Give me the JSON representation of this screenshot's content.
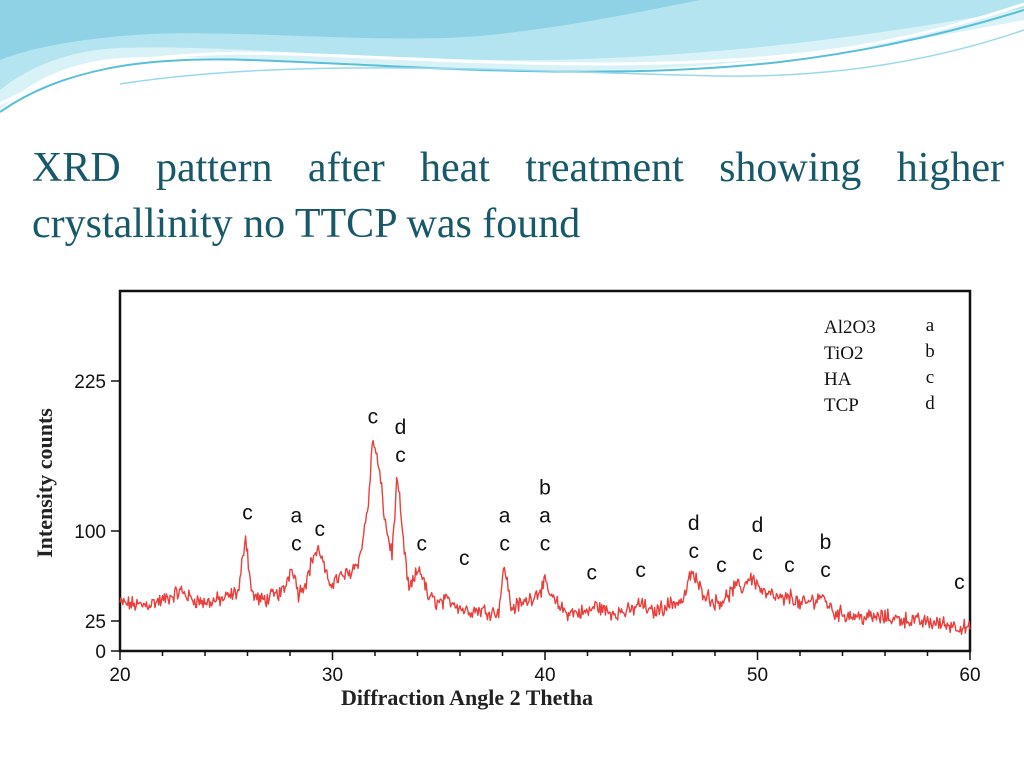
{
  "slide": {
    "title": "XRD pattern after heat treatment showing higher crystallinity no TTCP was found"
  },
  "colors": {
    "title": "#17586a",
    "series": "#e8403c",
    "header_wave_light": "#cfeff6",
    "header_wave_mid": "#a7dfee",
    "header_wave_dark": "#59bfd9"
  },
  "chart_data": {
    "type": "line",
    "xlabel": "Diffraction Angle 2 Thetha",
    "ylabel": "Intensity counts",
    "xlim": [
      20,
      60
    ],
    "ylim": [
      0,
      300
    ],
    "grid": false,
    "x_ticks": [
      20,
      30,
      40,
      50,
      60
    ],
    "y_ticks": [
      0,
      25,
      100,
      225
    ],
    "legend_position": "top-right",
    "legend": [
      {
        "phase": "Al2O3",
        "letter": "a"
      },
      {
        "phase": "TiO2",
        "letter": "b"
      },
      {
        "phase": "HA",
        "letter": "c"
      },
      {
        "phase": "TCP",
        "letter": "d"
      }
    ],
    "series": [
      {
        "x": [
          20,
          21,
          22,
          22.9,
          23.3,
          24,
          25,
          25.6,
          25.9,
          26.2,
          26.6,
          27,
          27.7,
          28.1,
          28.4,
          28.8,
          29.1,
          29.4,
          29.8,
          30.2,
          30.8,
          31.3,
          31.7,
          31.9,
          32.2,
          32.5,
          32.8,
          33.05,
          33.3,
          33.6,
          34.1,
          34.5,
          35,
          35.6,
          36.2,
          37,
          37.8,
          38.1,
          38.4,
          39,
          39.6,
          40,
          40.4,
          41,
          42,
          42.4,
          43,
          44,
          44.5,
          45,
          46,
          46.5,
          46.9,
          47.3,
          48,
          48.5,
          49,
          49.3,
          49.6,
          49.9,
          50.3,
          50.7,
          51.2,
          51.6,
          52,
          52.6,
          53,
          53.2,
          53.6,
          54.3,
          55,
          56,
          57,
          58,
          59,
          59.6,
          60
        ],
        "y": [
          40,
          38,
          42,
          50,
          44,
          40,
          44,
          50,
          98,
          48,
          42,
          44,
          50,
          72,
          48,
          60,
          80,
          84,
          56,
          60,
          65,
          78,
          125,
          178,
          150,
          105,
          80,
          146,
          95,
          50,
          70,
          45,
          40,
          42,
          34,
          34,
          32,
          72,
          36,
          40,
          48,
          56,
          42,
          32,
          32,
          38,
          32,
          33,
          40,
          32,
          40,
          42,
          66,
          52,
          40,
          44,
          54,
          52,
          62,
          58,
          48,
          46,
          42,
          46,
          38,
          42,
          46,
          42,
          32,
          30,
          28,
          28,
          26,
          24,
          22,
          20,
          18
        ]
      }
    ],
    "peak_annotations": [
      {
        "x": 26.0,
        "y": 98,
        "labels": [
          "c"
        ]
      },
      {
        "x": 28.3,
        "y": 72,
        "labels": [
          "a",
          "c"
        ]
      },
      {
        "x": 29.4,
        "y": 84,
        "labels": [
          "c"
        ]
      },
      {
        "x": 31.9,
        "y": 178,
        "labels": [
          "c"
        ]
      },
      {
        "x": 33.2,
        "y": 146,
        "labels": [
          "d",
          "c"
        ]
      },
      {
        "x": 34.2,
        "y": 72,
        "labels": [
          "c"
        ]
      },
      {
        "x": 36.2,
        "y": 60,
        "labels": [
          "c"
        ]
      },
      {
        "x": 38.1,
        "y": 72,
        "labels": [
          "a",
          "c"
        ]
      },
      {
        "x": 40.0,
        "y": 72,
        "labels": [
          "b",
          "a",
          "c"
        ]
      },
      {
        "x": 42.2,
        "y": 48,
        "labels": [
          "c"
        ]
      },
      {
        "x": 44.5,
        "y": 50,
        "labels": [
          "c"
        ]
      },
      {
        "x": 47.0,
        "y": 66,
        "labels": [
          "d",
          "c"
        ]
      },
      {
        "x": 48.3,
        "y": 54,
        "labels": [
          "c"
        ]
      },
      {
        "x": 50.0,
        "y": 64,
        "labels": [
          "d",
          "c"
        ]
      },
      {
        "x": 51.5,
        "y": 54,
        "labels": [
          "c"
        ]
      },
      {
        "x": 53.2,
        "y": 50,
        "labels": [
          "b",
          "c"
        ]
      },
      {
        "x": 59.5,
        "y": 40,
        "labels": [
          "c"
        ]
      }
    ]
  }
}
